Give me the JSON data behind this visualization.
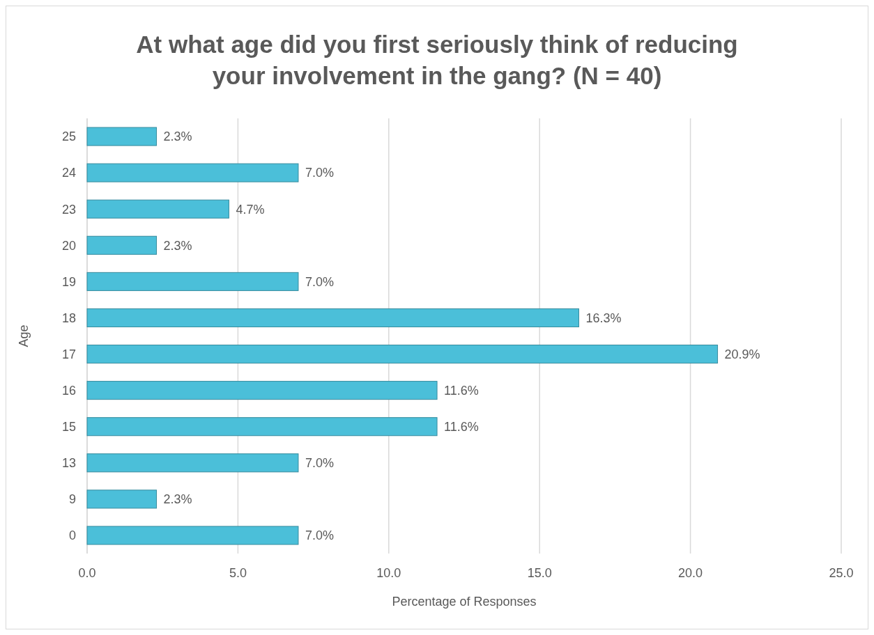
{
  "chart_data": {
    "type": "bar",
    "orientation": "horizontal",
    "title": "At what age did you first seriously think of reducing your involvement in the gang? (N = 40)",
    "xlabel": "Percentage of Responses",
    "ylabel": "Age",
    "categories": [
      "25",
      "24",
      "23",
      "20",
      "19",
      "18",
      "17",
      "16",
      "15",
      "13",
      "9",
      "0"
    ],
    "values": [
      2.3,
      7.0,
      4.7,
      2.3,
      7.0,
      16.3,
      20.9,
      11.6,
      11.6,
      7.0,
      2.3,
      7.0
    ],
    "value_labels": [
      "2.3%",
      "7.0%",
      "4.7%",
      "2.3%",
      "7.0%",
      "16.3%",
      "20.9%",
      "11.6%",
      "11.6%",
      "7.0%",
      "2.3%",
      "7.0%"
    ],
    "color": "#4bbfd9",
    "xlim": [
      0,
      25
    ],
    "xticks": [
      {
        "value": 0,
        "label": "0.0"
      },
      {
        "value": 5,
        "label": "5.0"
      },
      {
        "value": 10,
        "label": "10.0"
      },
      {
        "value": 15,
        "label": "15.0"
      },
      {
        "value": 20,
        "label": "20.0"
      },
      {
        "value": 25,
        "label": "25.0"
      }
    ],
    "grid": "x"
  }
}
